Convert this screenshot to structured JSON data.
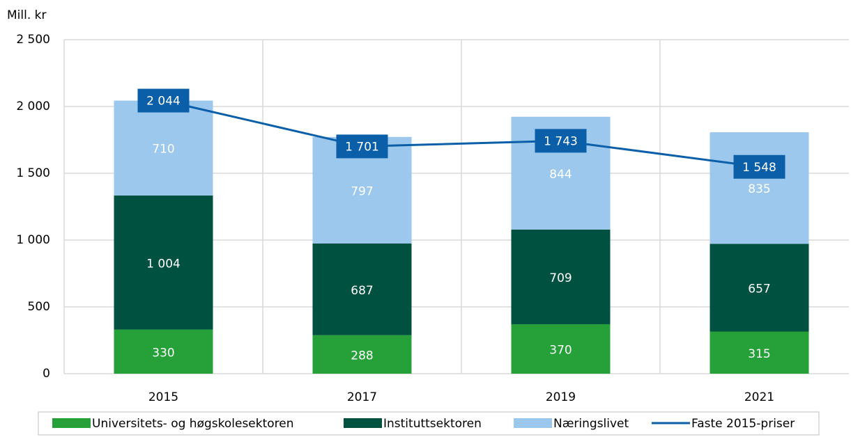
{
  "chart_data": {
    "type": "bar",
    "stacked": true,
    "y_label": "Mill. kr",
    "categories": [
      "2015",
      "2017",
      "2019",
      "2021"
    ],
    "series": [
      {
        "name": "Universitets- og høgskolesektoren",
        "type": "bar",
        "color": "#26a13a",
        "values": [
          330,
          288,
          370,
          315
        ]
      },
      {
        "name": "Instituttsektoren",
        "type": "bar",
        "color": "#00513f",
        "values": [
          1004,
          687,
          709,
          657
        ],
        "value_labels": [
          "1 004",
          "687",
          "709",
          "657"
        ]
      },
      {
        "name": "Næringslivet",
        "type": "bar",
        "color": "#9bc8ec",
        "values": [
          710,
          797,
          844,
          835
        ]
      },
      {
        "name": "Faste 2015-priser",
        "type": "line",
        "color": "#0a5fa8",
        "values": [
          2044,
          1701,
          1743,
          1548
        ],
        "value_labels": [
          "2 044",
          "1 701",
          "1 743",
          "1 548"
        ]
      }
    ],
    "ylim": [
      0,
      2500
    ],
    "yticks": [
      0,
      500,
      {
        "value": 1000,
        "label": "1 000"
      },
      {
        "value": 1500,
        "label": "1 500"
      },
      {
        "value": 2000,
        "label": "2 000"
      },
      {
        "value": 2500,
        "label": "2 500"
      }
    ],
    "grid": true,
    "legend": "bottom"
  }
}
